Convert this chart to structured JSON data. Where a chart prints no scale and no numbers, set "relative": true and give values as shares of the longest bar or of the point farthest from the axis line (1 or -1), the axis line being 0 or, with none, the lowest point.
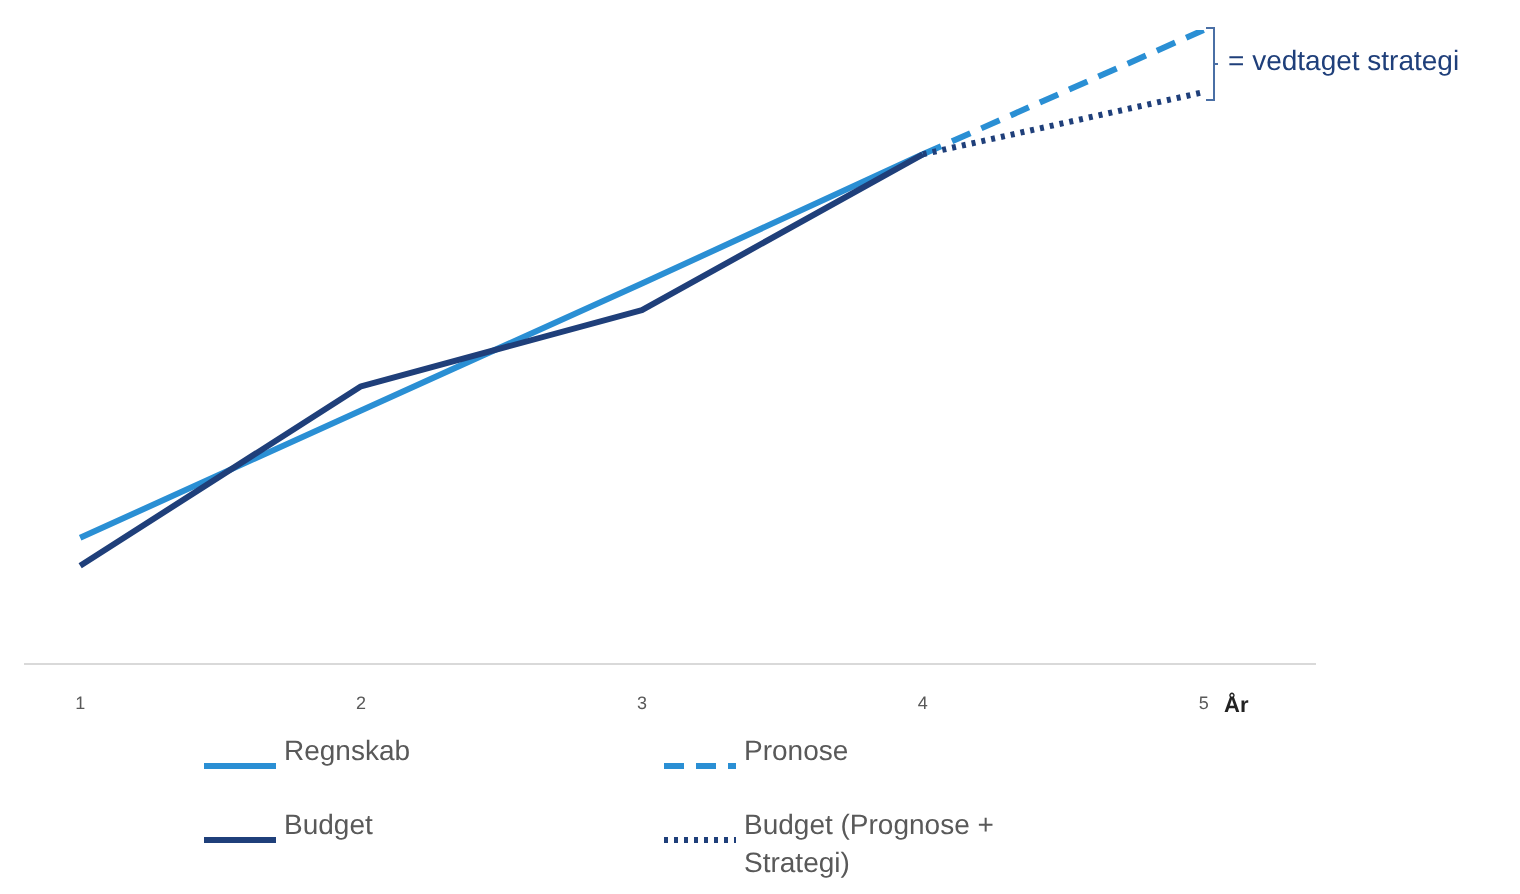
{
  "chart_data": {
    "type": "line",
    "relative": true,
    "xlabel": "År",
    "xlim": [
      0.8,
      5.4
    ],
    "xticks": [
      1,
      2,
      3,
      4,
      5
    ],
    "legend": "bottom",
    "marker": "none",
    "annotations": [
      "= vedtaget strategi"
    ],
    "series": [
      {
        "name": "Regnskab",
        "color": "#2a8fd4",
        "x": [
          1,
          2,
          3,
          4
        ],
        "values": [
          0.199,
          0.4,
          0.6,
          0.804
        ],
        "line_style": "solid"
      },
      {
        "name": "Pronose",
        "color": "#2a8fd4",
        "x": [
          4,
          5
        ],
        "values": [
          0.804,
          1
        ],
        "line_style": "dashed"
      },
      {
        "name": "Budget",
        "color": "#1f3f7a",
        "x": [
          1,
          2,
          3,
          4
        ],
        "values": [
          0.155,
          0.438,
          0.558,
          0.804
        ],
        "line_style": "solid"
      },
      {
        "name": "Budget (Prognose + Strategi)",
        "color": "#1f3f7a",
        "x": [
          4,
          5
        ],
        "values": [
          0.804,
          0.902
        ],
        "line_style": "dotted"
      }
    ]
  }
}
